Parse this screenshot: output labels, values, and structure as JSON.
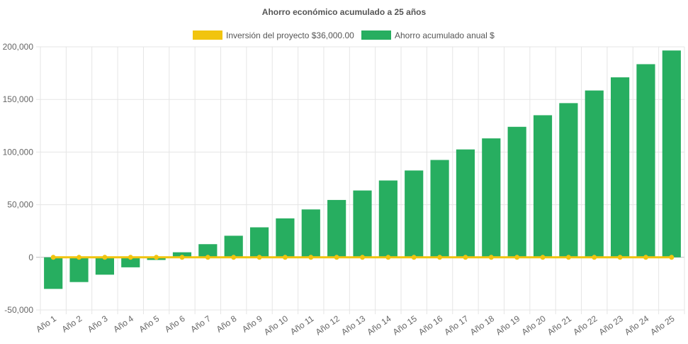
{
  "chart_data": {
    "type": "bar",
    "title": "Ahorro económico acumulado a 25 años",
    "categories": [
      "Año 1",
      "Año 2",
      "Año 3",
      "Año 4",
      "Año 5",
      "Año 6",
      "Año 7",
      "Año 8",
      "Año 9",
      "Año 10",
      "Año 11",
      "Año 12",
      "Año 13",
      "Año 14",
      "Año 15",
      "Año 16",
      "Año 17",
      "Año 18",
      "Año 19",
      "Año 20",
      "Año 21",
      "Año 22",
      "Año 23",
      "Año 24",
      "Año 25"
    ],
    "series": [
      {
        "name": "Inversión del proyecto $36,000.00",
        "type": "line",
        "color": "#f1c40f",
        "values": [
          0,
          0,
          0,
          0,
          0,
          0,
          0,
          0,
          0,
          0,
          0,
          0,
          0,
          0,
          0,
          0,
          0,
          0,
          0,
          0,
          0,
          0,
          0,
          0,
          0
        ]
      },
      {
        "name": "Ahorro acumulado anual $",
        "type": "bar",
        "color": "#27ae60",
        "values": [
          -30000,
          -23500,
          -16500,
          -9500,
          -2500,
          4800,
          12500,
          20500,
          28500,
          37000,
          45500,
          54500,
          63500,
          73000,
          82500,
          92500,
          102500,
          113000,
          124000,
          135000,
          146500,
          158500,
          171000,
          183500,
          196500
        ]
      }
    ],
    "yticks": [
      "200,000",
      "150,000",
      "100,000",
      "50,000",
      "0",
      "-50,000"
    ],
    "ylim": [
      -50000,
      200000
    ],
    "grid": true,
    "legend": "top-center"
  }
}
